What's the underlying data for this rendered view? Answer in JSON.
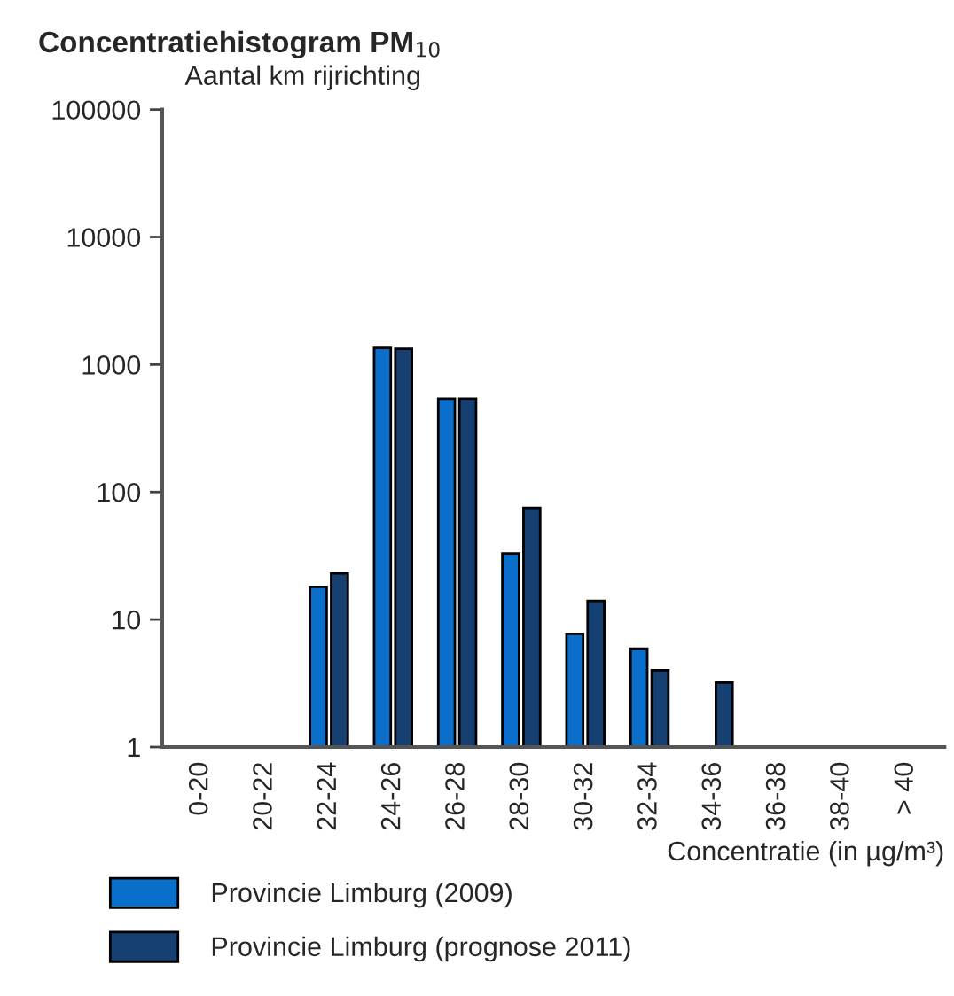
{
  "chart_data": {
    "type": "bar",
    "title": "Concentratiehistogram PM$_{10}$",
    "xlabel": "Concentratie (in µg/m³)",
    "ylabel": "Aantal km rijrichting",
    "categories": [
      "0-20",
      "20-22",
      "22-24",
      "24-26",
      "26-28",
      "28-30",
      "30-32",
      "32-34",
      "34-36",
      "36-38",
      "38-40",
      "> 40"
    ],
    "series": [
      {
        "name": "Provincie Limburg (2009)",
        "color": "#0a6ecb",
        "values": [
          1,
          1,
          18,
          1350,
          540,
          33,
          7.7,
          5.9,
          1,
          1,
          1,
          1
        ]
      },
      {
        "name": "Provincie Limburg (prognose 2011)",
        "color": "#163f72",
        "values": [
          1,
          1,
          23,
          1330,
          540,
          75,
          14,
          4,
          3.2,
          1,
          1,
          1
        ]
      }
    ],
    "log": "y",
    "ylim": [
      1,
      100000
    ],
    "yticks": [
      1,
      10,
      100,
      1000,
      10000,
      100000
    ],
    "grid": false,
    "legend": "bottom left"
  }
}
